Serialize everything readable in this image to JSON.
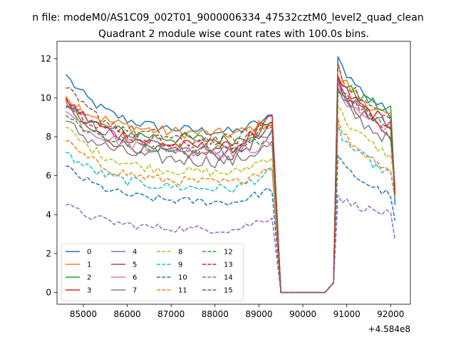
{
  "chart_data": {
    "type": "line",
    "suptitle": "n file: modeM0/AS1C09_002T01_9000006334_47532cztM0_level2_quad_clean",
    "title": "Quadrant 2 module wise count rates with 100.0s bins.",
    "xlabel": "",
    "ylabel": "",
    "x_offset_label": "+4.584e8",
    "xlim": [
      84400,
      92450
    ],
    "ylim": [
      -0.6,
      12.9
    ],
    "xticks": [
      85000,
      86000,
      87000,
      88000,
      89000,
      90000,
      91000,
      92000
    ],
    "xtick_labels": [
      "85000",
      "86000",
      "87000",
      "88000",
      "89000",
      "90000",
      "91000",
      "92000"
    ],
    "yticks": [
      0,
      2,
      4,
      6,
      8,
      10,
      12
    ],
    "ytick_labels": [
      "0",
      "2",
      "4",
      "6",
      "8",
      "10",
      "12"
    ],
    "grid": false,
    "legend_placement": "lower-left",
    "legend_columns": 4,
    "x_segments": [
      {
        "start": 84600,
        "end": 89300,
        "step": 100
      },
      {
        "start": 89500,
        "end": 90500,
        "step": 100
      },
      {
        "start": 90700,
        "end": 92100,
        "step": 100
      }
    ],
    "series": [
      {
        "name": "0",
        "color": "#1f77b4",
        "dash": "solid",
        "start": 11.2,
        "low": 8.2,
        "gap_end": 9.0,
        "peak": 12.3,
        "end_level": 9.2,
        "last": 4.5,
        "noise": 0.25
      },
      {
        "name": "1",
        "color": "#ff7f0e",
        "dash": "solid",
        "start": 10.1,
        "low": 8.1,
        "gap_end": 8.8,
        "peak": 11.6,
        "end_level": 8.9,
        "last": 5.0,
        "noise": 0.3
      },
      {
        "name": "2",
        "color": "#2ca02c",
        "dash": "solid",
        "start": 9.6,
        "low": 7.8,
        "gap_end": 8.6,
        "peak": 11.2,
        "end_level": 9.3,
        "last": 5.1,
        "noise": 0.3
      },
      {
        "name": "3",
        "color": "#d62728",
        "dash": "solid",
        "start": 10.0,
        "low": 7.4,
        "gap_end": 8.9,
        "peak": 11.1,
        "end_level": 8.7,
        "last": 5.0,
        "noise": 0.3
      },
      {
        "name": "4",
        "color": "#9467bd",
        "dash": "solid",
        "start": 9.8,
        "low": 7.3,
        "gap_end": 8.3,
        "peak": 10.8,
        "end_level": 8.5,
        "last": 5.3,
        "noise": 0.3
      },
      {
        "name": "5",
        "color": "#8c564b",
        "dash": "solid",
        "start": 9.5,
        "low": 7.0,
        "gap_end": 8.4,
        "peak": 10.9,
        "end_level": 8.2,
        "last": 5.2,
        "noise": 0.3
      },
      {
        "name": "6",
        "color": "#e377c2",
        "dash": "solid",
        "start": 9.3,
        "low": 7.2,
        "gap_end": 7.6,
        "peak": 10.6,
        "end_level": 8.3,
        "last": 5.5,
        "noise": 0.3
      },
      {
        "name": "7",
        "color": "#7f7f7f",
        "dash": "solid",
        "start": 8.8,
        "low": 6.7,
        "gap_end": 7.6,
        "peak": 10.4,
        "end_level": 7.8,
        "last": 5.4,
        "noise": 0.35
      },
      {
        "name": "8",
        "color": "#bcbd22",
        "dash": "dashed",
        "start": 8.5,
        "low": 6.1,
        "gap_end": 7.0,
        "peak": 9.7,
        "end_level": 7.0,
        "last": 5.6,
        "noise": 0.25
      },
      {
        "name": "9",
        "color": "#17becf",
        "dash": "dashed",
        "start": 7.2,
        "low": 5.3,
        "gap_end": 6.2,
        "peak": 8.5,
        "end_level": 6.1,
        "last": 4.8,
        "noise": 0.25
      },
      {
        "name": "10",
        "color": "#1f77b4",
        "dash": "dashed",
        "start": 6.5,
        "low": 4.6,
        "gap_end": 5.3,
        "peak": 7.0,
        "end_level": 5.0,
        "last": 3.7,
        "noise": 0.2
      },
      {
        "name": "11",
        "color": "#ff7f0e",
        "dash": "dashed",
        "start": 7.8,
        "low": 5.6,
        "gap_end": 6.5,
        "peak": 8.8,
        "end_level": 6.3,
        "last": 4.9,
        "noise": 0.25
      },
      {
        "name": "12",
        "color": "#2ca02c",
        "dash": "dashed",
        "start": 9.1,
        "low": 7.3,
        "gap_end": 8.1,
        "peak": 10.5,
        "end_level": 8.7,
        "last": 5.3,
        "noise": 0.3
      },
      {
        "name": "13",
        "color": "#d62728",
        "dash": "dashed",
        "start": 9.9,
        "low": 7.6,
        "gap_end": 8.6,
        "peak": 11.0,
        "end_level": 8.5,
        "last": 5.1,
        "noise": 0.3
      },
      {
        "name": "14",
        "color": "#9467bd",
        "dash": "dashed",
        "start": 4.5,
        "low": 3.2,
        "gap_end": 3.9,
        "peak": 5.0,
        "end_level": 4.0,
        "last": 2.7,
        "noise": 0.2
      },
      {
        "name": "15",
        "color": "#8c564b",
        "dash": "dashed",
        "start": 10.5,
        "low": 7.8,
        "gap_end": 8.8,
        "peak": 11.8,
        "end_level": 8.8,
        "last": 5.0,
        "noise": 0.3
      }
    ]
  }
}
